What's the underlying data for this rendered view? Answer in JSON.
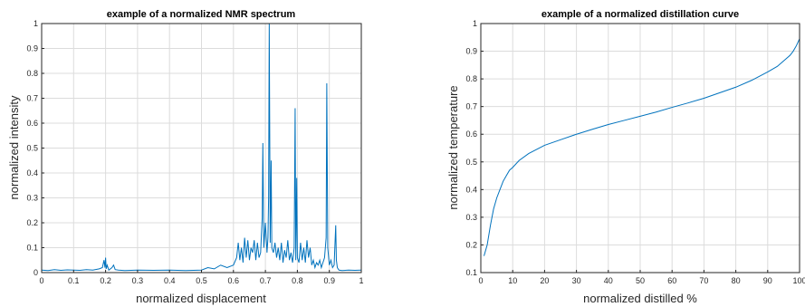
{
  "colors": {
    "series": "#0072BD",
    "grid": "#dcdcdc",
    "axis": "#262626"
  },
  "chart_data": [
    {
      "type": "line",
      "title": "example of a normalized NMR spectrum",
      "xlabel": "normalized displacement",
      "ylabel": "normalized intensity",
      "xlim": [
        0,
        1
      ],
      "ylim": [
        0,
        1
      ],
      "grid": true,
      "xticks": [
        0,
        0.1,
        0.2,
        0.3,
        0.4,
        0.5,
        0.6,
        0.7,
        0.8,
        0.9,
        1
      ],
      "xtick_labels": [
        "0",
        "0.1",
        "0.2",
        "0.3",
        "0.4",
        "0.5",
        "0.6",
        "0.7",
        "0.8",
        "0.9",
        "1"
      ],
      "yticks": [
        0,
        0.1,
        0.2,
        0.3,
        0.4,
        0.5,
        0.6,
        0.7,
        0.8,
        0.9,
        1
      ],
      "ytick_labels": [
        "0",
        "0.1",
        "0.2",
        "0.3",
        "0.4",
        "0.5",
        "0.6",
        "0.7",
        "0.8",
        "0.9",
        "1"
      ],
      "series": [
        {
          "x": [
            0,
            0.02,
            0.04,
            0.06,
            0.08,
            0.1,
            0.12,
            0.14,
            0.16,
            0.18,
            0.19,
            0.195,
            0.198,
            0.2,
            0.202,
            0.205,
            0.21,
            0.22,
            0.225,
            0.23,
            0.24,
            0.26,
            0.3,
            0.35,
            0.4,
            0.45,
            0.5,
            0.52,
            0.54,
            0.56,
            0.58,
            0.6,
            0.61,
            0.615,
            0.62,
            0.625,
            0.63,
            0.635,
            0.64,
            0.645,
            0.65,
            0.655,
            0.66,
            0.665,
            0.67,
            0.675,
            0.68,
            0.685,
            0.69,
            0.692,
            0.695,
            0.7,
            0.705,
            0.708,
            0.71,
            0.712,
            0.715,
            0.718,
            0.72,
            0.725,
            0.73,
            0.735,
            0.74,
            0.745,
            0.75,
            0.755,
            0.76,
            0.765,
            0.77,
            0.775,
            0.78,
            0.785,
            0.79,
            0.793,
            0.795,
            0.798,
            0.8,
            0.805,
            0.81,
            0.815,
            0.82,
            0.825,
            0.83,
            0.835,
            0.84,
            0.845,
            0.85,
            0.855,
            0.86,
            0.865,
            0.87,
            0.875,
            0.88,
            0.885,
            0.89,
            0.892,
            0.895,
            0.9,
            0.905,
            0.91,
            0.915,
            0.92,
            0.922,
            0.925,
            0.93,
            0.94,
            0.96,
            0.98,
            1
          ],
          "y": [
            0.01,
            0.008,
            0.012,
            0.009,
            0.011,
            0.01,
            0.009,
            0.012,
            0.01,
            0.015,
            0.02,
            0.05,
            0.02,
            0.06,
            0.015,
            0.03,
            0.01,
            0.02,
            0.03,
            0.012,
            0.01,
            0.008,
            0.01,
            0.009,
            0.01,
            0.008,
            0.01,
            0.02,
            0.015,
            0.03,
            0.02,
            0.03,
            0.06,
            0.12,
            0.05,
            0.1,
            0.04,
            0.14,
            0.06,
            0.13,
            0.05,
            0.1,
            0.08,
            0.13,
            0.05,
            0.12,
            0.06,
            0.08,
            0.22,
            0.52,
            0.1,
            0.2,
            0.08,
            0.14,
            0.3,
            1.0,
            0.12,
            0.45,
            0.1,
            0.08,
            0.12,
            0.06,
            0.1,
            0.05,
            0.12,
            0.04,
            0.09,
            0.06,
            0.13,
            0.05,
            0.08,
            0.04,
            0.1,
            0.66,
            0.05,
            0.38,
            0.06,
            0.04,
            0.12,
            0.05,
            0.1,
            0.04,
            0.13,
            0.06,
            0.1,
            0.03,
            0.05,
            0.02,
            0.04,
            0.03,
            0.05,
            0.02,
            0.04,
            0.06,
            0.14,
            0.76,
            0.1,
            0.03,
            0.05,
            0.02,
            0.03,
            0.19,
            0.05,
            0.02,
            0.01,
            0.008,
            0.01,
            0.009,
            0.01
          ]
        }
      ]
    },
    {
      "type": "line",
      "title": "example of a normalized distillation curve",
      "xlabel": "normalized distilled %",
      "ylabel": "normalized temperature",
      "xlim": [
        0,
        100
      ],
      "ylim": [
        0.1,
        1
      ],
      "grid": true,
      "xticks": [
        0,
        10,
        20,
        30,
        40,
        50,
        60,
        70,
        80,
        90,
        100
      ],
      "xtick_labels": [
        "0",
        "10",
        "20",
        "30",
        "40",
        "50",
        "60",
        "70",
        "80",
        "90",
        "100"
      ],
      "yticks": [
        0.1,
        0.2,
        0.3,
        0.4,
        0.5,
        0.6,
        0.7,
        0.8,
        0.9,
        1
      ],
      "ytick_labels": [
        "0.1",
        "0.2",
        "0.3",
        "0.4",
        "0.5",
        "0.6",
        "0.7",
        "0.8",
        "0.9",
        "1"
      ],
      "series": [
        {
          "x": [
            1,
            2,
            3,
            4,
            5,
            6,
            7,
            8,
            9,
            10,
            12,
            15,
            20,
            25,
            30,
            35,
            40,
            45,
            50,
            55,
            60,
            65,
            70,
            75,
            80,
            85,
            90,
            93,
            95,
            97,
            98,
            99,
            100
          ],
          "y": [
            0.16,
            0.2,
            0.27,
            0.33,
            0.37,
            0.4,
            0.43,
            0.45,
            0.47,
            0.48,
            0.505,
            0.53,
            0.56,
            0.58,
            0.6,
            0.618,
            0.635,
            0.65,
            0.665,
            0.68,
            0.697,
            0.713,
            0.73,
            0.75,
            0.77,
            0.795,
            0.825,
            0.845,
            0.865,
            0.885,
            0.9,
            0.92,
            0.945
          ]
        }
      ]
    }
  ]
}
